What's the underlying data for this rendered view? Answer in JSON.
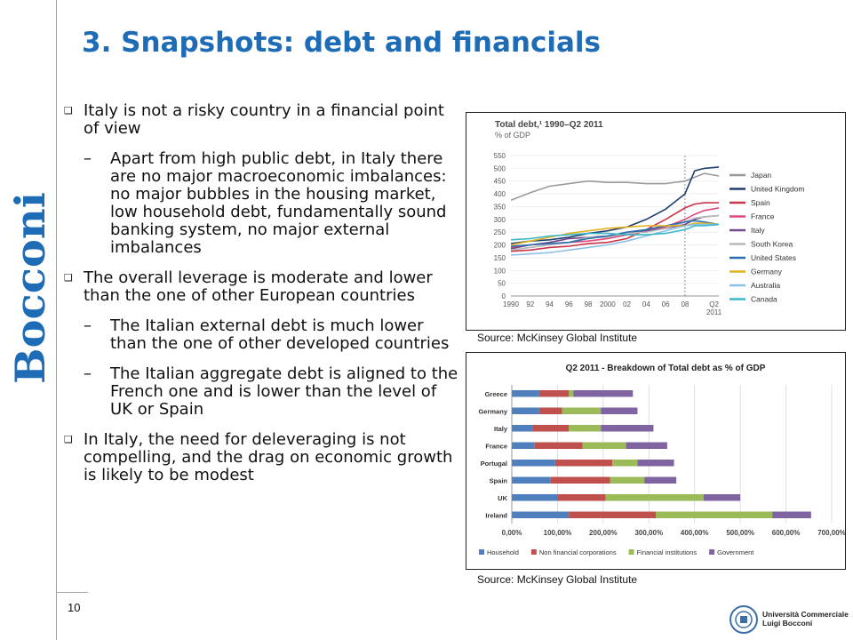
{
  "slide": {
    "title": "3. Snapshots: debt and financials",
    "page_number": "10",
    "brand": "Bocconi",
    "footer_logo_lines": [
      "Università Commerciale",
      "Luigi Bocconi"
    ]
  },
  "bullets": [
    {
      "level": 1,
      "text": "Italy is not a risky country in a financial point of view"
    },
    {
      "level": 2,
      "text": "Apart from high public debt, in Italy there are no major macroeconomic imbalances: no major bubbles in the housing market, low household debt, fundamentally sound banking system, no major external imbalances"
    },
    {
      "level": 1,
      "text": "The overall leverage is moderate and lower than the one of other European countries"
    },
    {
      "level": 2,
      "text": "The Italian external debt is much lower than the one of other developed countries"
    },
    {
      "level": 2,
      "text": "The Italian aggregate debt is aligned to the French one and is lower than the level of UK or Spain"
    },
    {
      "level": 1,
      "text": "In Italy, the need for deleveraging is not compelling, and the drag on economic growth is likely to be modest"
    }
  ],
  "sources": {
    "top": "Source: McKinsey Global Institute",
    "bottom": "Source: McKinsey Global Institute"
  },
  "chart_data": [
    {
      "type": "line",
      "title": "Total debt,¹ 1990–Q2 2011",
      "subtitle": "% of GDP",
      "x_tick_labels": [
        "1990",
        "92",
        "94",
        "96",
        "98",
        "2000",
        "02",
        "04",
        "06",
        "08",
        "Q2 2011"
      ],
      "y_ticks": [
        0,
        50,
        100,
        150,
        200,
        250,
        300,
        350,
        400,
        450,
        500,
        550
      ],
      "ylim": [
        0,
        550
      ],
      "xlim": [
        1990,
        2011.5
      ],
      "x": [
        1990,
        1992,
        1994,
        1996,
        1998,
        2000,
        2002,
        2004,
        2006,
        2008,
        2009,
        2010,
        2011.5
      ],
      "legend_position": "right",
      "series": [
        {
          "name": "Japan",
          "color": "#9a9a9a",
          "values": [
            375,
            405,
            430,
            440,
            450,
            445,
            445,
            440,
            440,
            450,
            465,
            480,
            470
          ]
        },
        {
          "name": "United Kingdom",
          "color": "#1f3e6e",
          "values": [
            205,
            215,
            220,
            230,
            245,
            255,
            270,
            300,
            340,
            400,
            490,
            500,
            505
          ]
        },
        {
          "name": "Spain",
          "color": "#c8354a",
          "values": [
            175,
            180,
            190,
            195,
            205,
            210,
            225,
            260,
            300,
            345,
            360,
            365,
            365
          ]
        },
        {
          "name": "France",
          "color": "#e04879",
          "values": [
            190,
            200,
            205,
            210,
            215,
            225,
            240,
            255,
            270,
            300,
            320,
            335,
            345
          ]
        },
        {
          "name": "Italy",
          "color": "#6e4a8a",
          "values": [
            185,
            200,
            210,
            225,
            230,
            235,
            245,
            255,
            265,
            280,
            300,
            310,
            315
          ]
        },
        {
          "name": "South Korea",
          "color": "#b8b8b8",
          "values": [
            180,
            190,
            200,
            210,
            230,
            230,
            245,
            250,
            265,
            290,
            305,
            310,
            315
          ]
        },
        {
          "name": "United States",
          "color": "#2a6fb0",
          "values": [
            195,
            200,
            205,
            210,
            225,
            235,
            250,
            260,
            275,
            290,
            295,
            290,
            280
          ]
        },
        {
          "name": "Germany",
          "color": "#e3b21e",
          "values": [
            200,
            215,
            230,
            245,
            255,
            265,
            270,
            275,
            275,
            275,
            285,
            285,
            280
          ]
        },
        {
          "name": "Australia",
          "color": "#8cc0e8",
          "values": [
            160,
            165,
            170,
            180,
            190,
            200,
            215,
            235,
            255,
            275,
            280,
            280,
            280
          ]
        },
        {
          "name": "Canada",
          "color": "#3bb7c9",
          "values": [
            220,
            225,
            235,
            240,
            245,
            245,
            240,
            240,
            245,
            260,
            275,
            275,
            280
          ]
        }
      ]
    },
    {
      "type": "bar",
      "orientation": "horizontal",
      "stacked": true,
      "title": "Q2 2011 - Breakdown of Total debt as % of GDP",
      "categories": [
        "Greece",
        "Germany",
        "Italy",
        "France",
        "Portugal",
        "Spain",
        "UK",
        "Ireland"
      ],
      "x_tick_labels": [
        "0,00%",
        "100,00%",
        "200,00%",
        "300,00%",
        "400,00%",
        "500,00%",
        "600,00%",
        "700,00%"
      ],
      "xlim": [
        0,
        700
      ],
      "grid": true,
      "legend_position": "bottom",
      "series": [
        {
          "name": "Household",
          "color": "#4f7fbc",
          "values": [
            60,
            60,
            45,
            50,
            95,
            85,
            100,
            125
          ]
        },
        {
          "name": "Non financial corporations",
          "color": "#c0504d",
          "values": [
            65,
            50,
            80,
            105,
            125,
            130,
            105,
            190
          ]
        },
        {
          "name": "Financial institutions",
          "color": "#9bbb59",
          "values": [
            10,
            85,
            70,
            95,
            55,
            75,
            215,
            255
          ]
        },
        {
          "name": "Government",
          "color": "#8064a2",
          "values": [
            130,
            80,
            115,
            90,
            80,
            70,
            80,
            85
          ]
        }
      ]
    }
  ]
}
